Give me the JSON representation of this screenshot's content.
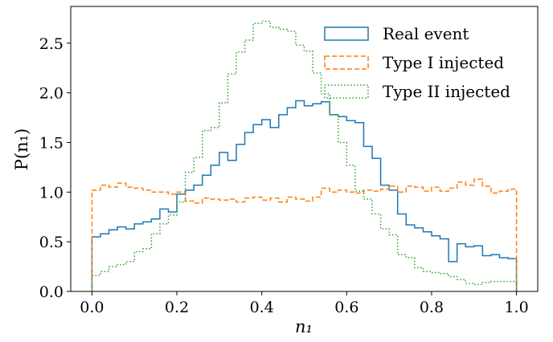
{
  "chart_data": {
    "type": "line",
    "xlabel": "n₁",
    "ylabel": "P(n₁)",
    "xlim": [
      -0.05,
      1.05
    ],
    "ylim": [
      0,
      2.87
    ],
    "x_ticks": [
      0.0,
      0.2,
      0.4,
      0.6,
      0.8,
      1.0
    ],
    "x_tick_labels": [
      "0.0",
      "0.2",
      "0.4",
      "0.6",
      "0.8",
      "1.0"
    ],
    "y_ticks": [
      0.0,
      0.5,
      1.0,
      1.5,
      2.0,
      2.5
    ],
    "y_tick_labels": [
      "0.0",
      "0.5",
      "1.0",
      "1.5",
      "2.0",
      "2.5"
    ],
    "grid": false,
    "legend_position": "top-right",
    "histogram_bins": {
      "start": 0.0,
      "end": 1.0,
      "count": 50
    },
    "series": [
      {
        "name": "Real event",
        "color": "#1f77b4",
        "style": "solid",
        "values": [
          0.55,
          0.58,
          0.62,
          0.65,
          0.63,
          0.68,
          0.7,
          0.73,
          0.83,
          0.8,
          0.98,
          1.02,
          1.07,
          1.17,
          1.27,
          1.4,
          1.32,
          1.48,
          1.6,
          1.68,
          1.73,
          1.65,
          1.78,
          1.85,
          1.92,
          1.87,
          1.89,
          1.91,
          1.78,
          1.76,
          1.72,
          1.7,
          1.46,
          1.34,
          1.07,
          1.02,
          0.78,
          0.67,
          0.64,
          0.6,
          0.56,
          0.53,
          0.3,
          0.48,
          0.45,
          0.46,
          0.36,
          0.37,
          0.34,
          0.33
        ]
      },
      {
        "name": "Type I injected",
        "color": "#ff7f0e",
        "style": "dashed",
        "values": [
          1.02,
          1.07,
          1.05,
          1.09,
          1.05,
          1.04,
          1.02,
          1.0,
          1.0,
          0.98,
          1.0,
          0.91,
          0.89,
          0.94,
          0.93,
          0.92,
          0.93,
          0.9,
          0.94,
          0.95,
          0.92,
          0.94,
          0.9,
          0.95,
          0.93,
          0.91,
          0.95,
          1.04,
          1.0,
          1.02,
          1.0,
          0.99,
          1.02,
          1.01,
          1.03,
          1.06,
          1.0,
          1.06,
          1.05,
          1.01,
          1.05,
          1.01,
          1.04,
          1.1,
          1.07,
          1.13,
          1.06,
          0.99,
          1.01,
          1.03
        ]
      },
      {
        "name": "Type II injected",
        "color": "#2ca02c",
        "style": "dotted",
        "values": [
          0.16,
          0.2,
          0.25,
          0.27,
          0.3,
          0.4,
          0.43,
          0.58,
          0.68,
          0.77,
          0.9,
          1.2,
          1.35,
          1.62,
          1.65,
          1.9,
          2.19,
          2.41,
          2.53,
          2.7,
          2.72,
          2.66,
          2.64,
          2.62,
          2.48,
          2.42,
          2.2,
          1.99,
          1.78,
          1.5,
          1.27,
          1.01,
          0.93,
          0.78,
          0.63,
          0.57,
          0.37,
          0.34,
          0.24,
          0.2,
          0.19,
          0.18,
          0.15,
          0.12,
          0.08,
          0.07,
          0.09,
          0.1,
          0.1,
          0.1
        ]
      }
    ]
  }
}
